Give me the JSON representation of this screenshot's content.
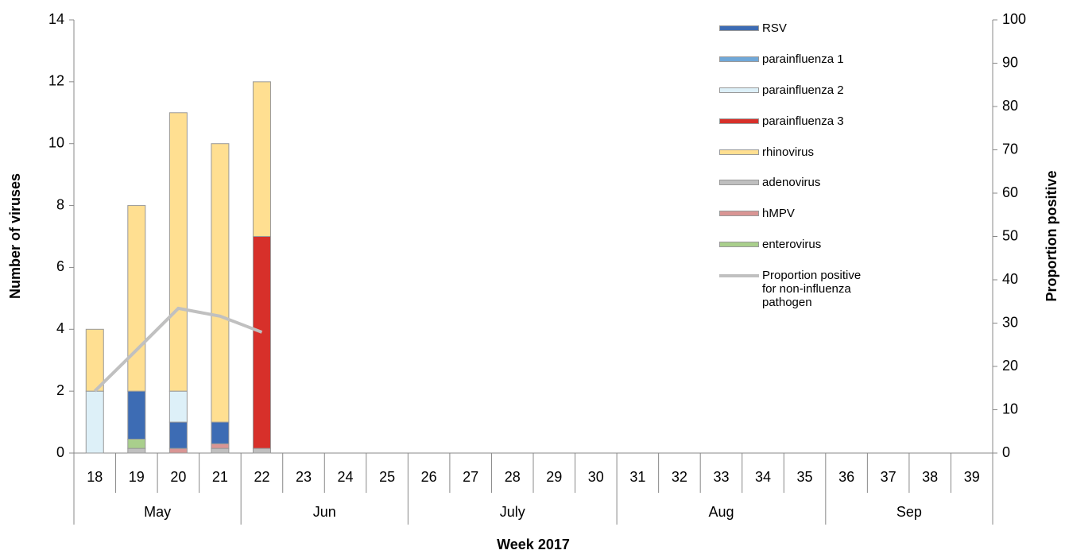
{
  "chart_data": {
    "type": "bar",
    "stacked": true,
    "y_label": "Number of viruses",
    "y2_label": "Proportion positive",
    "x_label": "Week 2017",
    "categories": [
      "18",
      "19",
      "20",
      "21",
      "22",
      "23",
      "24",
      "25",
      "26",
      "27",
      "28",
      "29",
      "30",
      "31",
      "32",
      "33",
      "34",
      "35",
      "36",
      "37",
      "38",
      "39"
    ],
    "categories2": [
      "May",
      null,
      null,
      null,
      "Jun",
      null,
      null,
      null,
      "July",
      null,
      null,
      null,
      null,
      "Aug",
      null,
      null,
      null,
      null,
      "Sep",
      null,
      null,
      null
    ],
    "ylim": [
      0,
      14
    ],
    "yticks": [
      0,
      2,
      4,
      6,
      8,
      10,
      12,
      14
    ],
    "y2lim": [
      0,
      100
    ],
    "y2ticks": [
      0,
      10,
      20,
      30,
      40,
      50,
      60,
      70,
      80,
      90,
      100
    ],
    "series": [
      {
        "name": "RSV",
        "color": "#3d6cb4",
        "values": [
          null,
          1.55,
          0.85,
          0.7,
          null,
          null,
          null,
          null,
          null,
          null,
          null,
          null,
          null,
          null,
          null,
          null,
          null,
          null,
          null,
          null,
          null,
          null
        ]
      },
      {
        "name": "parainfluenza 1",
        "color": "#70a8d8",
        "values": [
          null,
          null,
          null,
          null,
          null,
          null,
          null,
          null,
          null,
          null,
          null,
          null,
          null,
          null,
          null,
          null,
          null,
          null,
          null,
          null,
          null,
          null
        ]
      },
      {
        "name": "parainfluenza 2",
        "color": "#ddf0f8",
        "values": [
          2,
          null,
          1,
          null,
          null,
          null,
          null,
          null,
          null,
          null,
          null,
          null,
          null,
          null,
          null,
          null,
          null,
          null,
          null,
          null,
          null,
          null
        ]
      },
      {
        "name": "parainfluenza 3",
        "color": "#d7302a",
        "values": [
          null,
          null,
          null,
          null,
          6.85,
          null,
          null,
          null,
          null,
          null,
          null,
          null,
          null,
          null,
          null,
          null,
          null,
          null,
          null,
          null,
          null,
          null
        ]
      },
      {
        "name": "rhinovirus",
        "color": "#ffdf91",
        "values": [
          2,
          6,
          9,
          9,
          5,
          null,
          null,
          null,
          null,
          null,
          null,
          null,
          null,
          null,
          null,
          null,
          null,
          null,
          null,
          null,
          null,
          null
        ]
      },
      {
        "name": "adenovirus",
        "color": "#bfbfbf",
        "values": [
          null,
          0.15,
          null,
          0.15,
          0.15,
          null,
          null,
          null,
          null,
          null,
          null,
          null,
          null,
          null,
          null,
          null,
          null,
          null,
          null,
          null,
          null,
          null
        ]
      },
      {
        "name": "hMPV",
        "color": "#d99594",
        "values": [
          null,
          null,
          0.15,
          0.15,
          null,
          null,
          null,
          null,
          null,
          null,
          null,
          null,
          null,
          null,
          null,
          null,
          null,
          null,
          null,
          null,
          null,
          null
        ]
      },
      {
        "name": "enterovirus",
        "color": "#a9cf8c",
        "values": [
          null,
          0.3,
          null,
          null,
          null,
          null,
          null,
          null,
          null,
          null,
          null,
          null,
          null,
          null,
          null,
          null,
          null,
          null,
          null,
          null,
          null,
          null
        ]
      },
      {
        "name": "Proportion positive for non-influenza pathogen",
        "color": "#c0c0c0",
        "type": "line",
        "axis": "y2",
        "values": [
          14.3,
          23.8,
          33.4,
          31.6,
          27.9,
          null,
          null,
          null,
          null,
          null,
          null,
          null,
          null,
          null,
          null,
          null,
          null,
          null,
          null,
          null,
          null,
          null
        ]
      }
    ]
  }
}
